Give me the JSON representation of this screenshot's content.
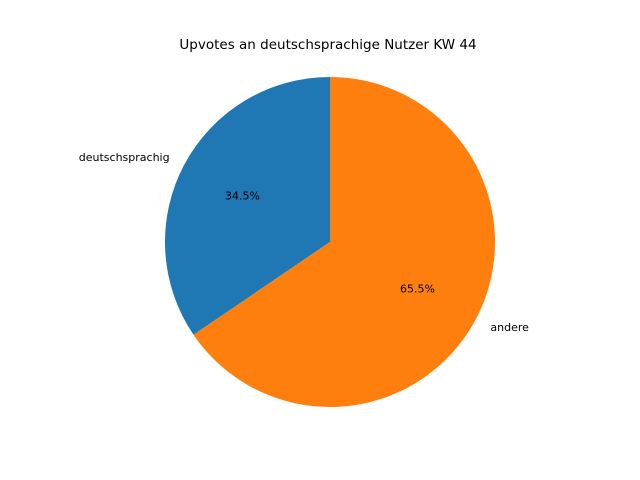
{
  "chart_data": {
    "type": "pie",
    "title": "Upvotes an deutschsprachige Nutzer KW 44",
    "labels": [
      "deutschsprachig",
      "andere"
    ],
    "values": [
      34.5,
      65.5
    ],
    "percent_labels": [
      "34.5%",
      "65.5%"
    ],
    "colors": [
      "#1f77b4",
      "#ff7f0e"
    ],
    "start_angle": 90,
    "direction": "counterclockwise",
    "legend": "none",
    "background": "#ffffff",
    "text_color": "#000000"
  }
}
